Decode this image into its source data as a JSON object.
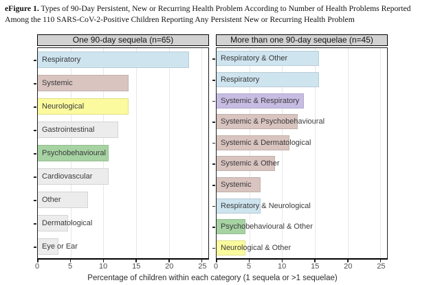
{
  "figure_caption": {
    "prefix": "eFigure 1.",
    "text": " Types of 90-Day Persistent, New or Recurring Health Problem According to Number of Health Problems Reported Among the 110 SARS-CoV-2-Positive Children Reporting Any Persistent New or Recurring Health Problem"
  },
  "xlabel": "Percentage of children within each category (1 sequela or >1 sequelae)",
  "palette": {
    "respiratory_blue": "#cee4ef",
    "systemic_rose": "#d9c4c0",
    "neurological_yellow": "#fbfa9e",
    "generic_gray": "#ececec",
    "psychobehavioural_green": "#a7d3a3",
    "combo_purple": "#c7bde3",
    "strip_bg": "#d2d2d2",
    "gridline": "#e7e7e7",
    "panel_border": "#1c1c1c",
    "bar_label_text": "#3a3a3a",
    "tick_text": "#4d4d4d"
  },
  "chart_data": [
    {
      "type": "bar",
      "orientation": "horizontal",
      "panel_title": "One 90-day sequela (n=65)",
      "xlim": [
        0,
        26
      ],
      "xticks": [
        0,
        5,
        10,
        15,
        20,
        25
      ],
      "grid": "vertical",
      "legend": "none",
      "categories": [
        "Respiratory",
        "Systemic",
        "Neurological",
        "Gastrointestinal",
        "Psychobehavioural",
        "Cardiovascular",
        "Other",
        "Dermatological",
        "Eye or Ear"
      ],
      "values": [
        23.1,
        13.8,
        13.8,
        12.3,
        10.8,
        10.8,
        7.7,
        4.6,
        3.1
      ],
      "bar_colors": [
        "respiratory_blue",
        "systemic_rose",
        "neurological_yellow",
        "generic_gray",
        "psychobehavioural_green",
        "generic_gray",
        "generic_gray",
        "generic_gray",
        "generic_gray"
      ]
    },
    {
      "type": "bar",
      "orientation": "horizontal",
      "panel_title": "More than one 90-day sequelae (n=45)",
      "xlim": [
        0,
        26
      ],
      "xticks": [
        0,
        5,
        10,
        15,
        20,
        25
      ],
      "grid": "vertical",
      "legend": "none",
      "categories": [
        "Respiratory & Other",
        "Respiratory",
        "Systemic & Respiratory",
        "Systemic & Psychobehavioural",
        "Systemic & Dermatological",
        "Systemic & Other",
        "Systemic",
        "Respiratory & Neurological",
        "Psychobehavioural & Other",
        "Neurological & Other"
      ],
      "values": [
        15.6,
        15.6,
        13.3,
        12.4,
        11.1,
        8.9,
        6.7,
        6.7,
        4.4,
        4.4
      ],
      "bar_colors": [
        "respiratory_blue",
        "respiratory_blue",
        "combo_purple",
        "systemic_rose",
        "systemic_rose",
        "systemic_rose",
        "systemic_rose",
        "respiratory_blue",
        "psychobehavioural_green",
        "neurological_yellow"
      ]
    }
  ]
}
